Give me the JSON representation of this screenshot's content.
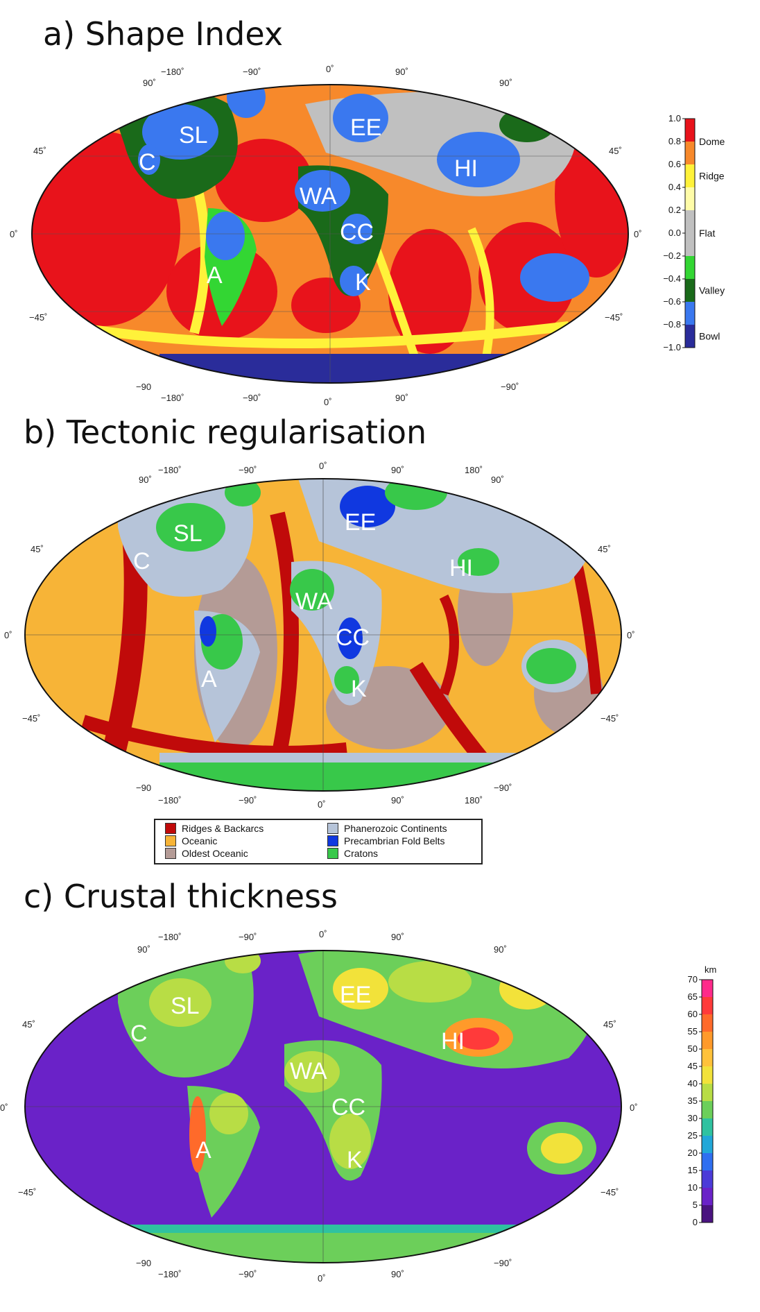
{
  "panels": [
    {
      "id": "a",
      "title": "a) Shape Index",
      "top_lon_labels": [
        "−180˚",
        "−90˚",
        "0˚",
        "90˚"
      ],
      "bottom_lon_labels": [
        "−180˚",
        "−90˚",
        "0˚",
        "90˚"
      ],
      "corner_top_left": "90˚",
      "corner_top_right": "90˚",
      "corner_bottom_left": "−90",
      "corner_bottom_right": "−90˚",
      "lat_left": [
        "45˚",
        "0˚",
        "−45˚"
      ],
      "lat_right": [
        "45˚",
        "0˚",
        "−45˚"
      ],
      "regions": [
        "SL",
        "C",
        "EE",
        "HI",
        "WA",
        "CC",
        "A",
        "K"
      ],
      "colorbar": {
        "ticks": [
          "1.0",
          "0.8",
          "0.6",
          "0.4",
          "0.2",
          "0.0",
          "−0.2",
          "−0.4",
          "−0.6",
          "−0.8",
          "−1.0"
        ],
        "categories": [
          "Dome",
          "Ridge",
          "Flat",
          "Valley",
          "Bowl"
        ],
        "colors": [
          "#e8131b",
          "#f7892b",
          "#fff23a",
          "#fffca8",
          "#c0c0c0",
          "#c0c0c0",
          "#33d633",
          "#1a6a1a",
          "#3a78ef",
          "#2a2c9a"
        ]
      }
    },
    {
      "id": "b",
      "title": "b) Tectonic regularisation",
      "top_lon_labels": [
        "−180˚",
        "−90˚",
        "0˚",
        "90˚",
        "180˚"
      ],
      "bottom_lon_labels": [
        "−180˚",
        "−90˚",
        "0˚",
        "90˚",
        "180˚"
      ],
      "corner_top_left": "90˚",
      "corner_top_right": "90˚",
      "corner_bottom_left": "−90",
      "corner_bottom_right": "−90˚",
      "lat_left": [
        "45˚",
        "0˚",
        "−45˚"
      ],
      "lat_right": [
        "45˚",
        "0˚",
        "−45˚"
      ],
      "regions": [
        "SL",
        "C",
        "EE",
        "HI",
        "WA",
        "CC",
        "A",
        "K"
      ],
      "legend": [
        {
          "label": "Ridges & Backarcs",
          "color": "#c00a0a"
        },
        {
          "label": "Oceanic",
          "color": "#f7b437"
        },
        {
          "label": "Oldest Oceanic",
          "color": "#b49b96"
        },
        {
          "label": "Phanerozoic Continents",
          "color": "#b6c4d9"
        },
        {
          "label": "Precambrian Fold Belts",
          "color": "#1038e0"
        },
        {
          "label": "Cratons",
          "color": "#38c84a"
        }
      ]
    },
    {
      "id": "c",
      "title": "c) Crustal thickness",
      "top_lon_labels": [
        "−180˚",
        "−90˚",
        "0˚",
        "90˚"
      ],
      "bottom_lon_labels": [
        "−180˚",
        "−90˚",
        "0˚",
        "90˚"
      ],
      "corner_top_left": "90˚",
      "corner_top_right": "90˚",
      "corner_bottom_left": "−90",
      "corner_bottom_right": "−90˚",
      "lat_left": [
        "45˚",
        "0˚",
        "−45˚"
      ],
      "lat_right": [
        "45˚",
        "0˚",
        "−45˚"
      ],
      "regions": [
        "SL",
        "C",
        "EE",
        "HI",
        "WA",
        "CC",
        "A",
        "K"
      ],
      "colorbar": {
        "unit": "km",
        "ticks": [
          "70",
          "65",
          "60",
          "55",
          "50",
          "45",
          "40",
          "35",
          "30",
          "25",
          "20",
          "15",
          "10",
          "5",
          "0"
        ],
        "colors": [
          "#ff2a8a",
          "#ff3a3a",
          "#ff6a2a",
          "#ff9a2a",
          "#ffc23a",
          "#f2e23a",
          "#b8dd45",
          "#6ccf5a",
          "#2fc2a0",
          "#21a7d8",
          "#2f6ff0",
          "#4b3bd8",
          "#6a22c8",
          "#4a1380"
        ]
      }
    }
  ]
}
